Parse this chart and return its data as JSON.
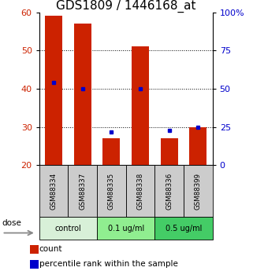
{
  "title": "GDS1809 / 1446168_at",
  "samples": [
    "GSM88334",
    "GSM88337",
    "GSM88335",
    "GSM88338",
    "GSM88336",
    "GSM88399"
  ],
  "bar_top": [
    59,
    57,
    27,
    51,
    27,
    30
  ],
  "bar_bottom": 20,
  "blue_squares_right": [
    54,
    50,
    22,
    50,
    23,
    25
  ],
  "ylim_left": [
    20,
    60
  ],
  "ylim_right": [
    0,
    100
  ],
  "yticks_left": [
    20,
    30,
    40,
    50,
    60
  ],
  "yticks_right": [
    0,
    25,
    50,
    75,
    100
  ],
  "ytick_labels_right": [
    "0",
    "25",
    "50",
    "75",
    "100%"
  ],
  "bar_color": "#cc2200",
  "blue_color": "#0000cc",
  "label_bg_color": "#cccccc",
  "title_fontsize": 11,
  "tick_fontsize": 8,
  "dose_label": "dose",
  "legend_count": "count",
  "legend_percentile": "percentile rank within the sample",
  "group_info": [
    {
      "label": "control",
      "color": "#d8f0d8",
      "xstart": -0.5,
      "xend": 1.5
    },
    {
      "label": "0.1 ug/ml",
      "color": "#90ee90",
      "xstart": 1.5,
      "xend": 3.5
    },
    {
      "label": "0.5 ug/ml",
      "color": "#44cc66",
      "xstart": 3.5,
      "xend": 5.5
    }
  ]
}
